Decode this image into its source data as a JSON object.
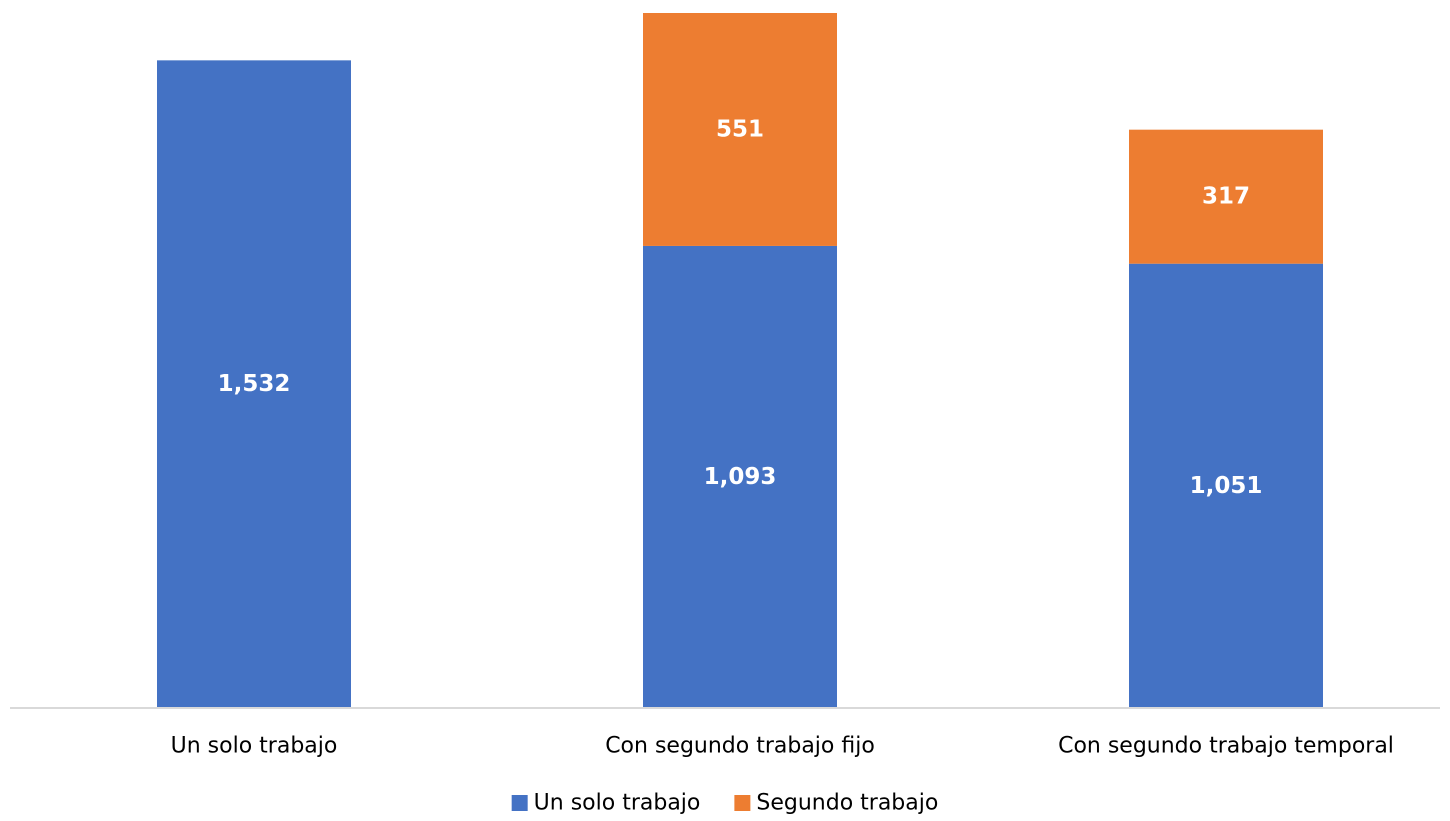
{
  "chart_data": {
    "type": "bar",
    "stacked": true,
    "categories": [
      "Un solo trabajo",
      "Con segundo trabajo fijo",
      "Con segundo trabajo temporal"
    ],
    "series": [
      {
        "name": "Un solo trabajo",
        "values": [
          1532,
          1093,
          1051
        ],
        "labels": [
          "1,532",
          "1,093",
          "1,051"
        ],
        "color": "#4472C4"
      },
      {
        "name": "Segundo trabajo",
        "values": [
          0,
          551,
          317
        ],
        "labels": [
          "",
          "551",
          "317"
        ],
        "color": "#ED7D31"
      }
    ],
    "ylim": [
      0,
      1644
    ],
    "grid": false,
    "legend": "bottom",
    "axis_color": "#D9D9D9"
  }
}
